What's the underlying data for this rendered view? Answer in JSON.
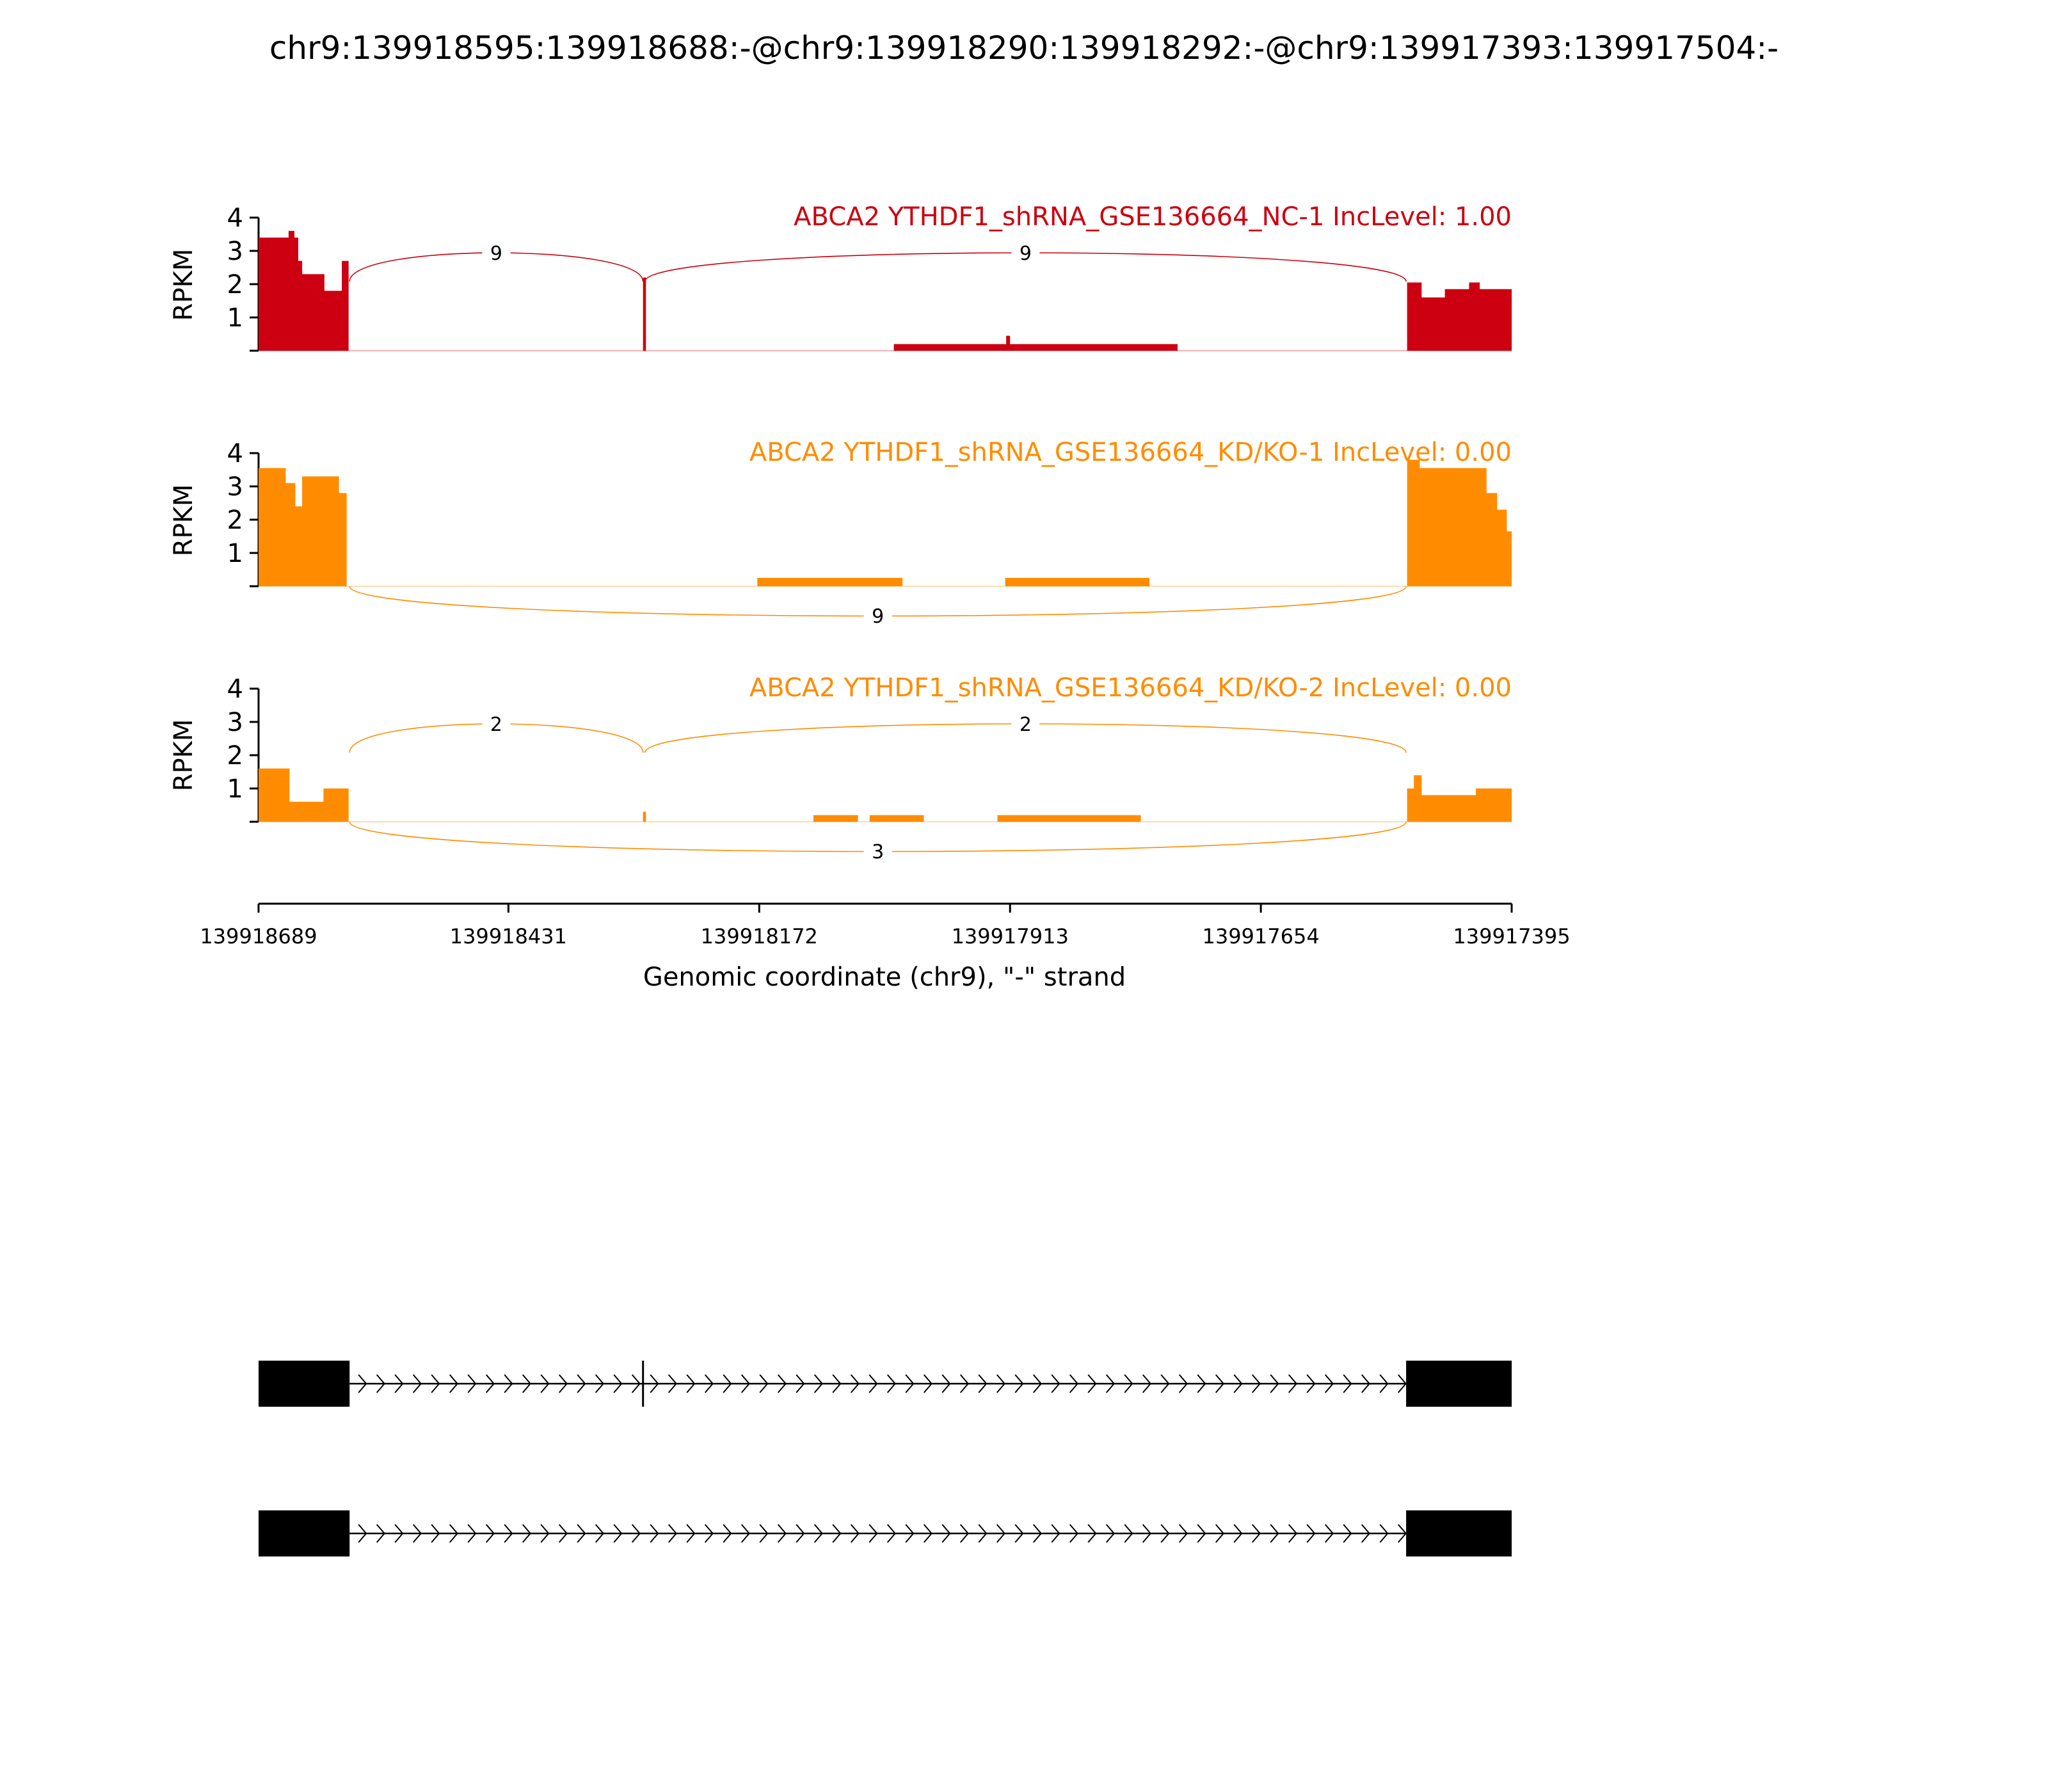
{
  "chart_data": {
    "type": "area",
    "title": "chr9:139918595:139918688:-@chr9:139918290:139918292:-@chr9:139917393:139917504:-",
    "xlabel": "Genomic coordinate (chr9), \"-\" strand",
    "ylabel": "RPKM",
    "xlim": [
      139918689,
      139917395
    ],
    "x_ticks": [
      139918689,
      139918431,
      139918172,
      139917913,
      139917654,
      139917395
    ],
    "x_tick_labels": [
      "139918689",
      "139918431",
      "139918172",
      "139917913",
      "139917654",
      "139917395"
    ],
    "ylim": [
      0,
      4
    ],
    "y_ticks": [
      1,
      2,
      3,
      4
    ],
    "y_tick_labels": [
      "1",
      "2",
      "3",
      "4"
    ],
    "grid": false,
    "panels": [
      {
        "title": "ABCA2 YTHDF1_shRNA_GSE136664_NC-1 IncLevel: 1.00",
        "color": "#cc0010",
        "coverage": [
          [
            139918689,
            3.4
          ],
          [
            139918658,
            3.4
          ],
          [
            139918658,
            3.6
          ],
          [
            139918652,
            3.6
          ],
          [
            139918652,
            3.4
          ],
          [
            139918648,
            3.4
          ],
          [
            139918648,
            2.7
          ],
          [
            139918644,
            2.7
          ],
          [
            139918644,
            2.3
          ],
          [
            139918621,
            2.3
          ],
          [
            139918621,
            1.8
          ],
          [
            139918603,
            1.8
          ],
          [
            139918603,
            2.7
          ],
          [
            139918596,
            2.7
          ],
          [
            139918596,
            0
          ]
        ],
        "coverage_extra": [
          [
            [
              139918292,
              0
            ],
            [
              139918292,
              2.2
            ],
            [
              139918289,
              2.2
            ],
            [
              139918289,
              0
            ]
          ],
          [
            [
              139918033,
              0
            ],
            [
              139918033,
              0.2
            ],
            [
              139917740,
              0.2
            ],
            [
              139917740,
              0
            ]
          ],
          [
            [
              139917917,
              0
            ],
            [
              139917917,
              0.45
            ],
            [
              139917913,
              0.45
            ],
            [
              139917913,
              0
            ]
          ],
          [
            [
              139917503,
              0
            ],
            [
              139917503,
              2.05
            ],
            [
              139917488,
              2.05
            ],
            [
              139917488,
              1.6
            ],
            [
              139917464,
              1.6
            ],
            [
              139917464,
              1.85
            ],
            [
              139917439,
              1.85
            ],
            [
              139917439,
              2.05
            ],
            [
              139917428,
              2.05
            ],
            [
              139917428,
              1.85
            ],
            [
              139917395,
              1.85
            ],
            [
              139917395,
              0
            ]
          ]
        ],
        "junctions": [
          {
            "from": 139918595,
            "to": 139918292,
            "count": "9",
            "side": "above"
          },
          {
            "from": 139918290,
            "to": 139917504,
            "count": "9",
            "side": "above"
          }
        ]
      },
      {
        "title": "ABCA2 YTHDF1_shRNA_GSE136664_KD/KO-1 IncLevel: 0.00",
        "color": "#ff8c00",
        "coverage": [
          [
            139918689,
            3.55
          ],
          [
            139918661,
            3.55
          ],
          [
            139918661,
            3.1
          ],
          [
            139918651,
            3.1
          ],
          [
            139918651,
            2.4
          ],
          [
            139918644,
            2.4
          ],
          [
            139918644,
            3.3
          ],
          [
            139918606,
            3.3
          ],
          [
            139918606,
            2.8
          ],
          [
            139918598,
            2.8
          ],
          [
            139918598,
            0
          ]
        ],
        "coverage_extra": [
          [
            [
              139918174,
              0
            ],
            [
              139918174,
              0.25
            ],
            [
              139918024,
              0.25
            ],
            [
              139918024,
              0
            ]
          ],
          [
            [
              139917918,
              0
            ],
            [
              139917918,
              0.25
            ],
            [
              139917769,
              0.25
            ],
            [
              139917769,
              0
            ]
          ],
          [
            [
              139917503,
              0
            ],
            [
              139917503,
              3.8
            ],
            [
              139917490,
              3.8
            ],
            [
              139917490,
              3.55
            ],
            [
              139917421,
              3.55
            ],
            [
              139917421,
              2.8
            ],
            [
              139917410,
              2.8
            ],
            [
              139917410,
              2.3
            ],
            [
              139917400,
              2.3
            ],
            [
              139917400,
              1.65
            ],
            [
              139917395,
              1.65
            ],
            [
              139917395,
              0
            ]
          ]
        ],
        "junctions": [
          {
            "from": 139918595,
            "to": 139917504,
            "count": "9",
            "side": "below"
          }
        ]
      },
      {
        "title": "ABCA2 YTHDF1_shRNA_GSE136664_KD/KO-2 IncLevel: 0.00",
        "color": "#ff8c00",
        "coverage": [
          [
            139918689,
            1.6
          ],
          [
            139918657,
            1.6
          ],
          [
            139918657,
            0.6
          ],
          [
            139918622,
            0.6
          ],
          [
            139918622,
            1.0
          ],
          [
            139918596,
            1.0
          ],
          [
            139918596,
            0
          ]
        ],
        "coverage_extra": [
          [
            [
              139918292,
              0
            ],
            [
              139918292,
              0.3
            ],
            [
              139918289,
              0.3
            ],
            [
              139918289,
              0
            ]
          ],
          [
            [
              139918116,
              0
            ],
            [
              139918116,
              0.2
            ],
            [
              139918070,
              0.2
            ],
            [
              139918070,
              0
            ]
          ],
          [
            [
              139918058,
              0
            ],
            [
              139918058,
              0.2
            ],
            [
              139918002,
              0.2
            ],
            [
              139918002,
              0
            ]
          ],
          [
            [
              139917926,
              0
            ],
            [
              139917926,
              0.2
            ],
            [
              139917778,
              0.2
            ],
            [
              139917778,
              0
            ]
          ],
          [
            [
              139917503,
              0
            ],
            [
              139917503,
              1.0
            ],
            [
              139917496,
              1.0
            ],
            [
              139917496,
              1.4
            ],
            [
              139917488,
              1.4
            ],
            [
              139917488,
              0.8
            ],
            [
              139917432,
              0.8
            ],
            [
              139917432,
              1.0
            ],
            [
              139917395,
              1.0
            ],
            [
              139917395,
              0
            ]
          ]
        ],
        "junctions": [
          {
            "from": 139918595,
            "to": 139918292,
            "count": "2",
            "side": "above"
          },
          {
            "from": 139918290,
            "to": 139917504,
            "count": "2",
            "side": "above"
          },
          {
            "from": 139918595,
            "to": 139917504,
            "count": "3",
            "side": "below"
          }
        ]
      }
    ],
    "isoforms": [
      {
        "exons": [
          [
            139918689,
            139918595
          ],
          [
            139918292,
            139918290
          ],
          [
            139917504,
            139917395
          ]
        ],
        "intron": [
          139918595,
          139917504
        ]
      },
      {
        "exons": [
          [
            139918689,
            139918595
          ],
          [
            139917504,
            139917395
          ]
        ],
        "intron": [
          139918595,
          139917504
        ]
      }
    ]
  }
}
